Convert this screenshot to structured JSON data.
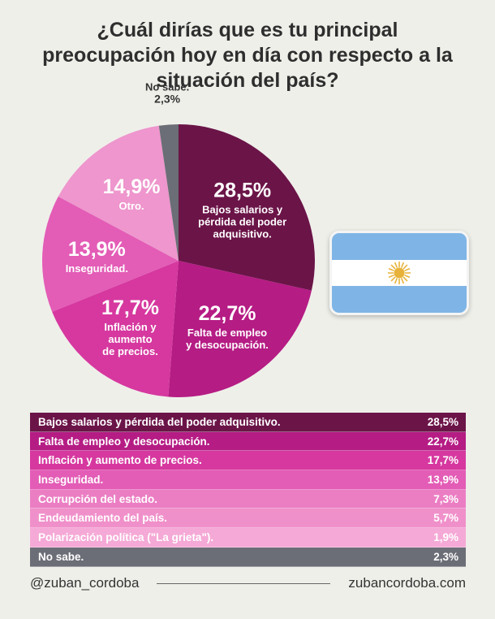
{
  "title_lines": [
    "¿Cuál dirías que es tu principal",
    "preocupación hoy en día con respecto a la",
    "situación del país?"
  ],
  "chart_data": [
    {
      "type": "pie",
      "slices": [
        {
          "label_lines": [
            "Bajos salarios y",
            "pérdida del poder",
            "adquisitivo."
          ],
          "value": 28.5,
          "display": "28,5%",
          "color": "#6b1448"
        },
        {
          "label_lines": [
            "Falta de empleo",
            "y desocupación."
          ],
          "value": 22.7,
          "display": "22,7%",
          "color": "#b51c84"
        },
        {
          "label_lines": [
            "Inflación y",
            "aumento",
            "de precios."
          ],
          "value": 17.7,
          "display": "17,7%",
          "color": "#d6389f"
        },
        {
          "label_lines": [
            "Inseguridad."
          ],
          "value": 13.9,
          "display": "13,9%",
          "color": "#e35cb6"
        },
        {
          "label_lines": [
            "Otro."
          ],
          "value": 14.9,
          "display": "14,9%",
          "color": "#ee96cd"
        },
        {
          "label_lines": [
            "No sabe."
          ],
          "value": 2.3,
          "display": "2,3%",
          "color": "#6b6e76"
        }
      ]
    },
    {
      "type": "table",
      "rows": [
        {
          "label": "Bajos salarios y pérdida del poder adquisitivo.",
          "value": 28.5,
          "display": "28,5%",
          "color": "#6b1448"
        },
        {
          "label": "Falta de empleo y desocupación.",
          "value": 22.7,
          "display": "22,7%",
          "color": "#b51c84"
        },
        {
          "label": "Inflación y aumento de precios.",
          "value": 17.7,
          "display": "17,7%",
          "color": "#d6389f"
        },
        {
          "label": "Inseguridad.",
          "value": 13.9,
          "display": "13,9%",
          "color": "#e35cb6"
        },
        {
          "label": "Corrupción del estado.",
          "value": 7.3,
          "display": "7,3%",
          "color": "#eb7ec3"
        },
        {
          "label": "Endeudamiento del país.",
          "value": 5.7,
          "display": "5,7%",
          "color": "#f090ca"
        },
        {
          "label": "Polarización política (\"La grieta\").",
          "value": 1.9,
          "display": "1,9%",
          "color": "#f5a9d6"
        },
        {
          "label": "No sabe.",
          "value": 2.3,
          "display": "2,3%",
          "color": "#6b6e76"
        }
      ]
    }
  ],
  "flag": {
    "top_color": "#7fb5e6",
    "middle_color": "#ffffff",
    "bottom_color": "#7fb5e6",
    "sun_color": "#e8b23a",
    "icon": "sun-of-may-icon"
  },
  "footer": {
    "handle": "@zuban_cordoba",
    "site": "zubancordoba.com"
  }
}
